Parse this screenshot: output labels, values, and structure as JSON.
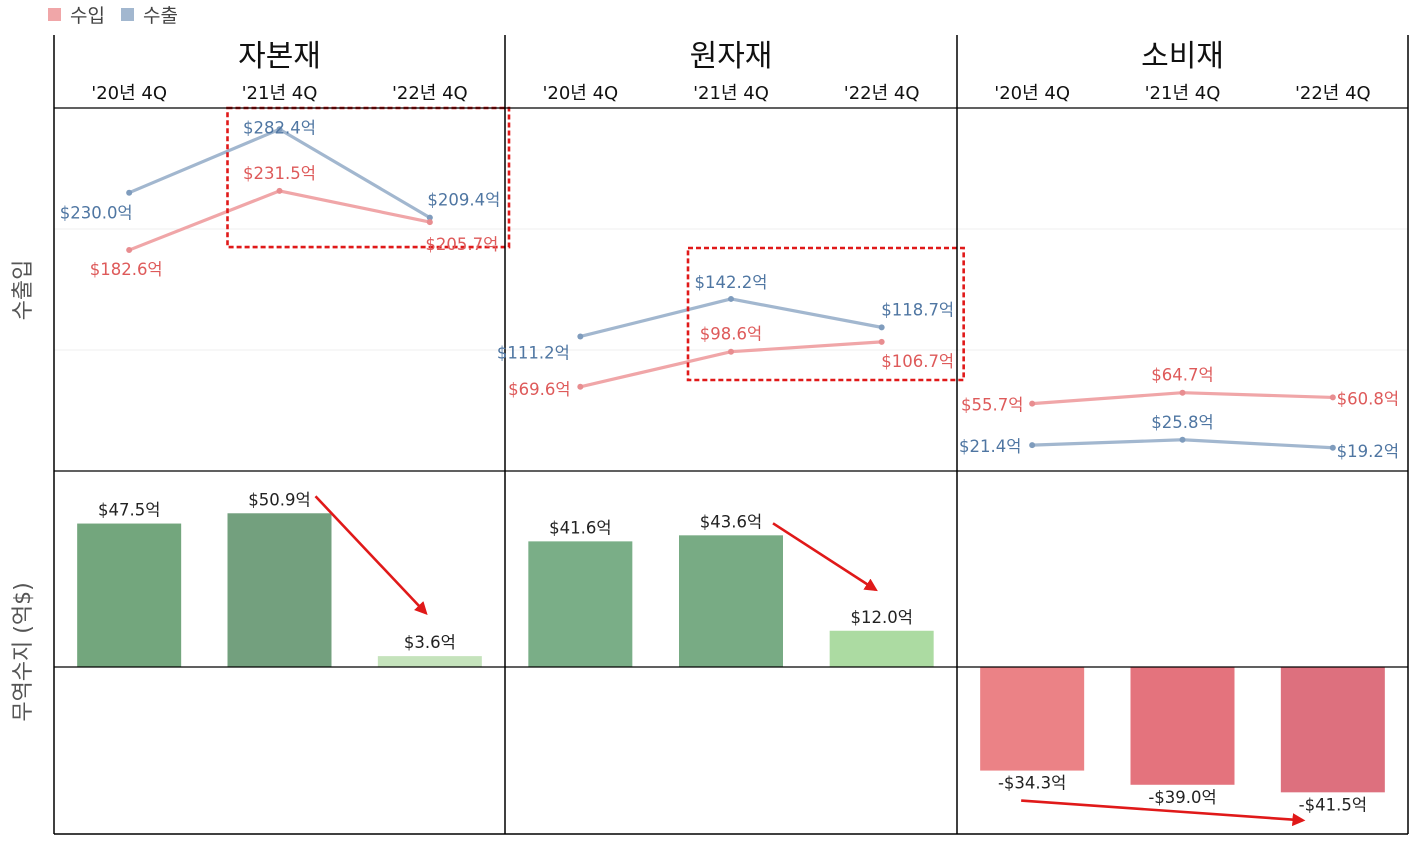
{
  "legend": [
    {
      "name": "수입",
      "color": "#f0a6a8"
    },
    {
      "name": "수출",
      "color": "#a2b7cf"
    }
  ],
  "chart_data": {
    "type": "line+bar",
    "row_labels": [
      "수출입",
      "무역수지 (억$)"
    ],
    "categories": [
      "'20년 4Q",
      "'21년 4Q",
      "'22년 4Q"
    ],
    "value_suffix": "억",
    "panels": [
      {
        "title": "자본재",
        "import": [
          182.6,
          231.5,
          205.7
        ],
        "export": [
          230.0,
          282.4,
          209.4
        ],
        "import_labels": [
          "$182.6억",
          "$231.5억",
          "$205.7억"
        ],
        "export_labels": [
          "$230.0억",
          "$282.4억",
          "$209.4억"
        ],
        "balance": [
          47.5,
          50.9,
          3.6
        ],
        "balance_labels": [
          "$47.5억",
          "$50.9억",
          "$3.6억"
        ],
        "bar_colors": [
          "#73a67d",
          "#73a07e",
          "#c5e3bc"
        ]
      },
      {
        "title": "원자재",
        "import": [
          69.6,
          98.6,
          106.7
        ],
        "export": [
          111.2,
          142.2,
          118.7
        ],
        "import_labels": [
          "$69.6억",
          "$98.6억",
          "$106.7억"
        ],
        "export_labels": [
          "$111.2억",
          "$142.2억",
          "$118.7억"
        ],
        "balance": [
          41.6,
          43.6,
          12.0
        ],
        "balance_labels": [
          "$41.6억",
          "$43.6억",
          "$12.0억"
        ],
        "bar_colors": [
          "#7aae87",
          "#78ab84",
          "#acdba2"
        ]
      },
      {
        "title": "소비재",
        "import": [
          55.7,
          64.7,
          60.8
        ],
        "export": [
          21.4,
          25.8,
          19.2
        ],
        "import_labels": [
          "$55.7억",
          "$64.7억",
          "$60.8억"
        ],
        "export_labels": [
          "$21.4억",
          "$25.8억",
          "$19.2억"
        ],
        "balance": [
          -34.3,
          -39.0,
          -41.5
        ],
        "balance_labels": [
          "-$34.3억",
          "-$39.0억",
          "-$41.5억"
        ],
        "bar_colors": [
          "#eb8286",
          "#e4737d",
          "#dd707e"
        ]
      }
    ],
    "line_colors": {
      "import": "#f0a6a8",
      "export": "#a2b7cf"
    },
    "label_colors": {
      "import": "#de5a5a",
      "export": "#4f76a2"
    },
    "line_ylim": [
      0,
      300
    ],
    "bar_ylim": [
      -55,
      55
    ],
    "legend_position": "top-left"
  }
}
